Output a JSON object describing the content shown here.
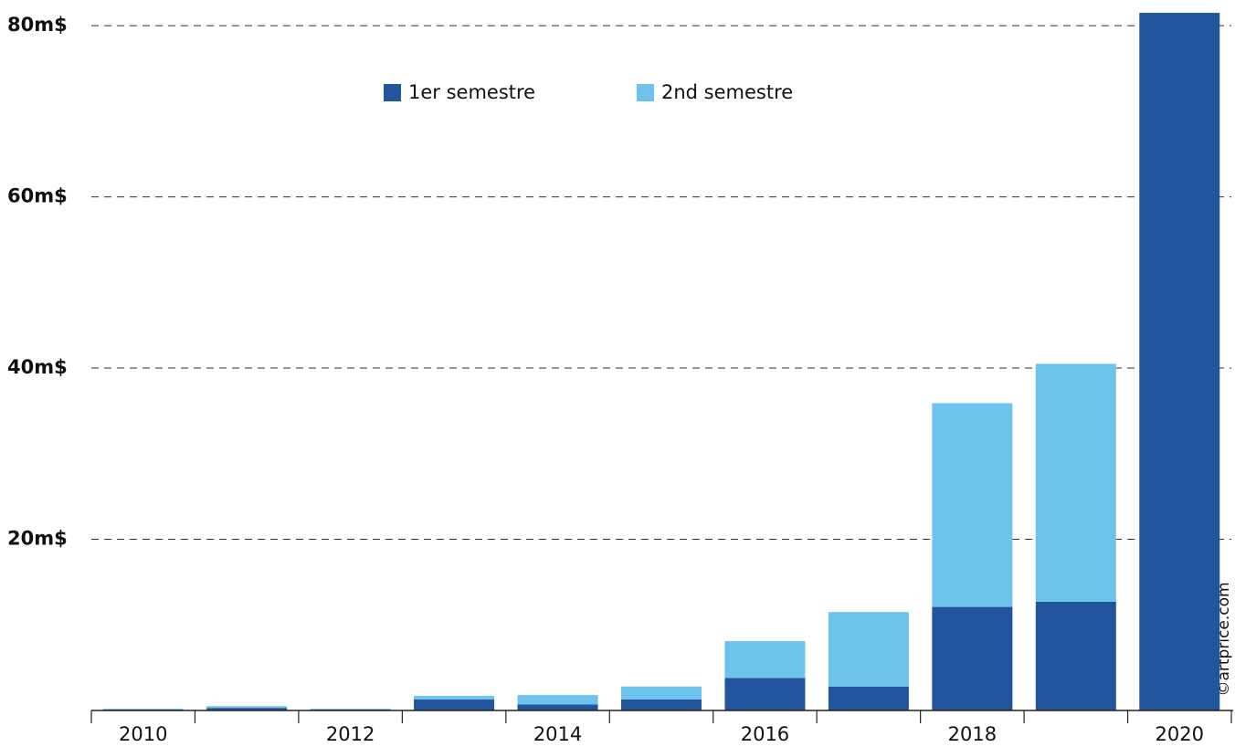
{
  "chart_data": {
    "type": "stacked_bar",
    "categories": [
      "2010",
      null,
      "2012",
      null,
      "2014",
      null,
      "2016",
      null,
      "2018",
      null,
      "2020"
    ],
    "series": [
      {
        "name": "1er semestre",
        "color": "#22559b",
        "values": [
          0.1,
          0.3,
          0.1,
          1.3,
          0.7,
          1.3,
          3.8,
          2.8,
          12.1,
          12.7,
          81.5
        ]
      },
      {
        "name": "2nd semestre",
        "color": "#6ec3ec",
        "values": [
          0.1,
          0.2,
          0.1,
          0.4,
          1.1,
          1.5,
          4.3,
          8.7,
          23.8,
          27.8,
          null
        ]
      }
    ],
    "ylim": [
      0,
      83
    ],
    "yticks": [
      {
        "value": 20,
        "label": "20m$"
      },
      {
        "value": 40,
        "label": "40m$"
      },
      {
        "value": 60,
        "label": "60m$"
      },
      {
        "value": 80,
        "label": "80m$"
      }
    ],
    "grid": true,
    "legend": "top",
    "watermark": "©artprice.com"
  }
}
